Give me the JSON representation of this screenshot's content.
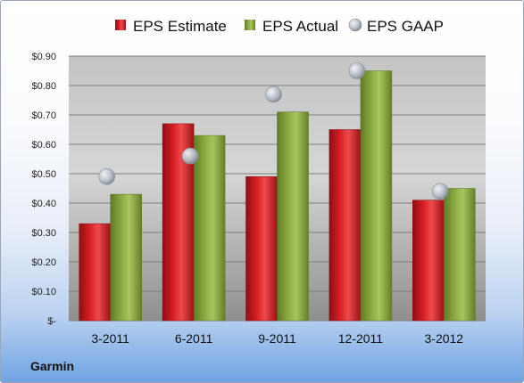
{
  "company": "Garmin",
  "colors": {
    "estimate": "#c8191d",
    "actual": "#8caa3f",
    "gaap": "#b9bfc8"
  },
  "chart_data": {
    "type": "bar",
    "categories": [
      "3-2011",
      "6-2011",
      "9-2011",
      "12-2011",
      "3-2012"
    ],
    "series": [
      {
        "name": "EPS Estimate",
        "kind": "bar",
        "values": [
          0.33,
          0.67,
          0.49,
          0.65,
          0.41
        ]
      },
      {
        "name": "EPS Actual",
        "kind": "bar",
        "values": [
          0.43,
          0.63,
          0.71,
          0.85,
          0.45
        ]
      },
      {
        "name": "EPS GAAP",
        "kind": "scatter",
        "values": [
          0.49,
          0.56,
          0.77,
          0.85,
          0.44
        ]
      }
    ],
    "y_ticks": [
      0,
      0.1,
      0.2,
      0.3,
      0.4,
      0.5,
      0.6,
      0.7,
      0.8,
      0.9
    ],
    "y_tick_labels": [
      "$-",
      "$0.10",
      "$0.20",
      "$0.30",
      "$0.40",
      "$0.50",
      "$0.60",
      "$0.70",
      "$0.80",
      "$0.90"
    ],
    "ylim": [
      0,
      0.9
    ],
    "grid": true,
    "legend_position": "top"
  }
}
